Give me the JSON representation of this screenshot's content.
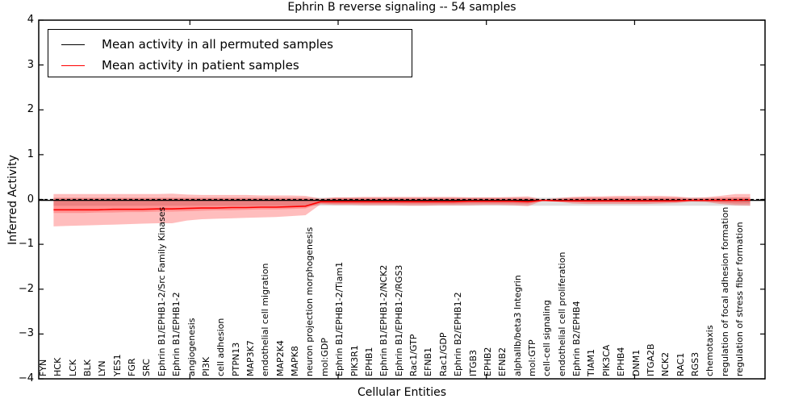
{
  "chart_data": {
    "type": "line",
    "title": "Ephrin B reverse signaling -- 54 samples",
    "xlabel": "Cellular Entities",
    "ylabel": "Inferred Activity",
    "ylim": [
      -4,
      4
    ],
    "grid": false,
    "legend_position": "upper left",
    "ytick_values": [
      4,
      3,
      2,
      1,
      0,
      -1,
      -2,
      -3,
      -4
    ],
    "ytick_labels": [
      "4",
      "3",
      "2",
      "1",
      "0",
      "−1",
      "−2",
      "−3",
      "−4"
    ],
    "xtick_numeric_values": [
      10,
      20,
      30,
      40
    ],
    "zero_line": {
      "y": 0,
      "style": "dashed",
      "color": "#000000"
    },
    "categories": [
      "FYN",
      "HCK",
      "LCK",
      "BLK",
      "LYN",
      "YES1",
      "FGR",
      "SRC",
      "Ephrin B1/EPHB1-2/Src Family Kinases",
      "Ephrin B1/EPHB1-2",
      "angiogenesis",
      "PI3K",
      "cell adhesion",
      "PTPN13",
      "MAP3K7",
      "endothelial cell migration",
      "MAP2K4",
      "MAPK8",
      "neuron projection morphogenesis",
      "mol:GDP",
      "Ephrin B1/EPHB1-2/Tiam1",
      "PIK3R1",
      "EPHB1",
      "Ephrin B1/EPHB1-2/NCK2",
      "Ephrin B1/EPHB1-2/RGS3",
      "Rac1/GTP",
      "EFNB1",
      "Rac1/GDP",
      "Ephrin B2/EPHB1-2",
      "ITGB3",
      "EPHB2",
      "EFNB2",
      "alphaIIb/beta3 Integrin",
      "mol:GTP",
      "cell-cell signaling",
      "endothelial cell proliferation",
      "Ephrin B2/EPHB4",
      "TIAM1",
      "PIK3CA",
      "EPHB4",
      "DNM1",
      "ITGA2B",
      "NCK2",
      "RAC1",
      "RGS3",
      "chemotaxis",
      "regulation of focal adhesion formation",
      "regulation of stress fiber formation"
    ],
    "series": [
      {
        "name": "Mean activity in all permuted samples",
        "color": "#000000",
        "extend_to_spines": true,
        "values": [
          -0.02,
          -0.02,
          -0.02,
          -0.02,
          -0.02,
          -0.02,
          -0.02,
          -0.02,
          -0.02,
          -0.02,
          -0.02,
          -0.02,
          -0.02,
          -0.02,
          -0.02,
          -0.02,
          -0.02,
          -0.02,
          -0.02,
          -0.02,
          -0.02,
          -0.02,
          -0.02,
          -0.02,
          -0.02,
          -0.02,
          -0.02,
          -0.02,
          -0.02,
          -0.02,
          -0.02,
          -0.02,
          -0.02,
          -0.02,
          -0.02,
          -0.02,
          -0.02,
          -0.02,
          -0.02,
          -0.02,
          -0.02,
          -0.02,
          -0.02,
          -0.02,
          -0.02,
          -0.02,
          -0.02,
          -0.02
        ]
      },
      {
        "name": "Mean activity in patient samples",
        "color": "#ff0000",
        "extend_to_spines": false,
        "values": [
          -0.23,
          -0.23,
          -0.23,
          -0.23,
          -0.22,
          -0.22,
          -0.22,
          -0.21,
          -0.21,
          -0.2,
          -0.19,
          -0.19,
          -0.18,
          -0.18,
          -0.17,
          -0.17,
          -0.16,
          -0.15,
          -0.05,
          -0.05,
          -0.05,
          -0.05,
          -0.05,
          -0.05,
          -0.05,
          -0.05,
          -0.05,
          -0.05,
          -0.04,
          -0.04,
          -0.04,
          -0.04,
          -0.05,
          -0.02,
          -0.03,
          -0.03,
          -0.03,
          -0.03,
          -0.03,
          -0.03,
          -0.03,
          -0.03,
          -0.03,
          -0.02,
          -0.02,
          -0.02,
          -0.02,
          -0.01
        ]
      }
    ],
    "bands": [
      {
        "name": "permuted-samples-spread",
        "color": "#aaaaaa",
        "opacity": 0.38,
        "upper": [
          0.04,
          0.04,
          0.04,
          0.04,
          0.04,
          0.04,
          0.04,
          0.04,
          0.04,
          0.04,
          0.04,
          0.04,
          0.04,
          0.04,
          0.04,
          0.04,
          0.04,
          0.04,
          0.04,
          0.04,
          0.04,
          0.04,
          0.04,
          0.04,
          0.04,
          0.04,
          0.04,
          0.04,
          0.04,
          0.04,
          0.04,
          0.04,
          0.04,
          0.04,
          0.04,
          0.04,
          0.04,
          0.04,
          0.04,
          0.04,
          0.04,
          0.04,
          0.04,
          0.04,
          0.04,
          0.04,
          0.04,
          0.04
        ],
        "lower": [
          -0.14,
          -0.14,
          -0.14,
          -0.14,
          -0.14,
          -0.14,
          -0.14,
          -0.14,
          -0.14,
          -0.14,
          -0.14,
          -0.14,
          -0.14,
          -0.14,
          -0.14,
          -0.14,
          -0.14,
          -0.14,
          -0.14,
          -0.14,
          -0.14,
          -0.14,
          -0.14,
          -0.14,
          -0.14,
          -0.14,
          -0.14,
          -0.14,
          -0.14,
          -0.14,
          -0.14,
          -0.14,
          -0.14,
          -0.14,
          -0.14,
          -0.14,
          -0.14,
          -0.14,
          -0.14,
          -0.14,
          -0.14,
          -0.14,
          -0.14,
          -0.14,
          -0.14,
          -0.14,
          -0.14,
          -0.14
        ]
      },
      {
        "name": "patient-samples-spread-outer",
        "color": "#ff0000",
        "opacity": 0.26,
        "upper": [
          0.12,
          0.12,
          0.12,
          0.12,
          0.12,
          0.12,
          0.12,
          0.12,
          0.13,
          0.11,
          0.1,
          0.1,
          0.1,
          0.1,
          0.09,
          0.09,
          0.09,
          0.08,
          0.02,
          0.05,
          0.05,
          0.06,
          0.06,
          0.06,
          0.06,
          0.06,
          0.06,
          0.06,
          0.05,
          0.05,
          0.05,
          0.06,
          0.07,
          0.0,
          0.03,
          0.06,
          0.07,
          0.07,
          0.08,
          0.08,
          0.08,
          0.08,
          0.07,
          0.04,
          0.05,
          0.08,
          0.12,
          0.12
        ],
        "lower": [
          -0.6,
          -0.59,
          -0.58,
          -0.57,
          -0.56,
          -0.55,
          -0.54,
          -0.53,
          -0.53,
          -0.47,
          -0.44,
          -0.43,
          -0.42,
          -0.41,
          -0.4,
          -0.39,
          -0.37,
          -0.35,
          -0.11,
          -0.12,
          -0.12,
          -0.13,
          -0.13,
          -0.13,
          -0.14,
          -0.14,
          -0.13,
          -0.13,
          -0.13,
          -0.12,
          -0.12,
          -0.13,
          -0.15,
          -0.03,
          -0.05,
          -0.09,
          -0.1,
          -0.1,
          -0.1,
          -0.1,
          -0.1,
          -0.09,
          -0.08,
          -0.05,
          -0.06,
          -0.1,
          -0.13,
          -0.14
        ]
      },
      {
        "name": "patient-samples-spread-inner",
        "color": "#ff0000",
        "opacity": 0.22,
        "upper": [
          0.03,
          0.03,
          0.03,
          0.03,
          0.03,
          0.03,
          0.03,
          0.03,
          0.03,
          0.03,
          0.03,
          0.03,
          0.03,
          0.03,
          0.03,
          0.03,
          0.03,
          0.03,
          -0.02,
          0.03,
          0.03,
          0.03,
          0.03,
          0.03,
          0.03,
          0.03,
          0.03,
          0.03,
          0.03,
          0.03,
          0.03,
          0.03,
          0.03,
          -0.01,
          0.01,
          0.03,
          0.04,
          0.04,
          0.04,
          0.04,
          0.04,
          0.04,
          0.04,
          0.01,
          0.02,
          0.04,
          0.05,
          0.05
        ],
        "lower": [
          -0.3,
          -0.3,
          -0.3,
          -0.29,
          -0.29,
          -0.28,
          -0.28,
          -0.27,
          -0.27,
          -0.26,
          -0.25,
          -0.24,
          -0.24,
          -0.23,
          -0.22,
          -0.22,
          -0.21,
          -0.2,
          -0.09,
          -0.1,
          -0.1,
          -0.1,
          -0.1,
          -0.1,
          -0.1,
          -0.1,
          -0.1,
          -0.1,
          -0.09,
          -0.09,
          -0.09,
          -0.09,
          -0.1,
          -0.02,
          -0.03,
          -0.06,
          -0.07,
          -0.07,
          -0.07,
          -0.07,
          -0.07,
          -0.07,
          -0.06,
          -0.03,
          -0.04,
          -0.07,
          -0.09,
          -0.09
        ]
      }
    ]
  }
}
